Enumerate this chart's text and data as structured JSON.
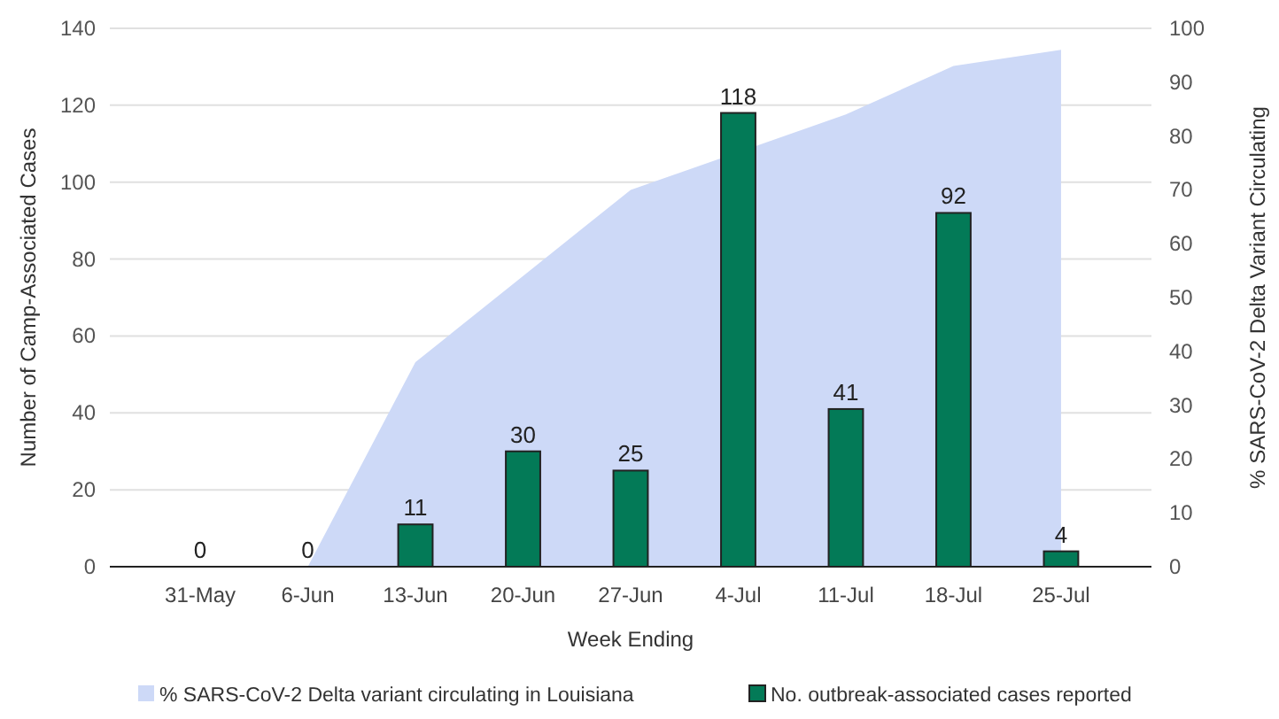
{
  "chart_data": {
    "type": "bar",
    "xlabel": "Week Ending",
    "ylabel": "Number of Camp-Associated Cases",
    "y2label": "% SARS-CoV-2 Delta Variant Circulating",
    "categories": [
      "31-May",
      "6-Jun",
      "13-Jun",
      "20-Jun",
      "27-Jun",
      "4-Jul",
      "11-Jul",
      "18-Jul",
      "25-Jul"
    ],
    "series": [
      {
        "name": "% SARS-CoV-2 Delta variant circulating in Louisiana",
        "type": "area",
        "axis": "y2",
        "color": "#cdd9f7",
        "values": [
          0,
          0,
          38,
          54,
          70,
          null,
          84,
          93,
          96
        ]
      },
      {
        "name": "No. outbreak-associated cases reported",
        "color": "#037a57",
        "values": [
          0,
          0,
          11,
          30,
          25,
          118,
          41,
          92,
          4
        ],
        "value_labels": [
          "0",
          "0",
          "11",
          "30",
          "25",
          "118",
          "41",
          "92",
          "4"
        ]
      }
    ],
    "ylim": [
      0,
      140
    ],
    "yticks": [
      0,
      20,
      40,
      60,
      80,
      100,
      120,
      140
    ],
    "y2lim": [
      0,
      100
    ],
    "y2ticks": [
      0,
      10,
      20,
      30,
      40,
      50,
      60,
      70,
      80,
      90,
      100
    ],
    "grid": "y",
    "legend": "bottom"
  }
}
